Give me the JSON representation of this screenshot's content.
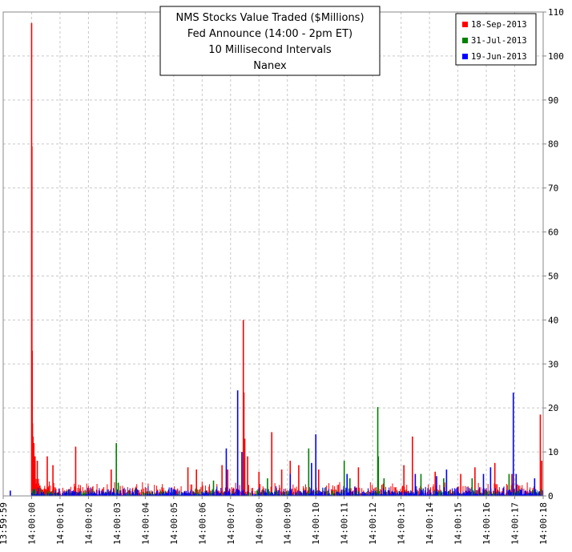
{
  "chart_data": {
    "type": "bar",
    "title_lines": [
      "NMS Stocks Value Traded ($Millions)",
      "Fed Announce (14:00 - 2pm ET)",
      "10 Millisecond Intervals",
      "Nanex"
    ],
    "ylim": [
      0,
      110
    ],
    "y_ticks": [
      "0",
      "10",
      "20",
      "30",
      "40",
      "50",
      "60",
      "70",
      "80",
      "90",
      "100",
      "110"
    ],
    "x_ticks": [
      "13:59:59",
      "14:00:00",
      "14:00:01",
      "14:00:02",
      "14:00:03",
      "14:00:04",
      "14:00:05",
      "14:00:06",
      "14:00:07",
      "14:00:08",
      "14:00:09",
      "14:00:10",
      "14:00:11",
      "14:00:12",
      "14:00:13",
      "14:00:14",
      "14:00:15",
      "14:00:16",
      "14:00:17",
      "14:00:18"
    ],
    "xlim_seconds": [
      -1,
      18
    ],
    "grid": true,
    "legend_position": "top-right",
    "series": [
      {
        "name": "18-Sep-2013",
        "color": "#ff0000",
        "peaks": [
          {
            "t": 0.0,
            "v": 107.5
          },
          {
            "t": 0.01,
            "v": 79.5
          },
          {
            "t": 0.02,
            "v": 33
          },
          {
            "t": 0.03,
            "v": 16.5
          },
          {
            "t": 0.05,
            "v": 13.5
          },
          {
            "t": 0.08,
            "v": 12
          },
          {
            "t": 0.12,
            "v": 9
          },
          {
            "t": 0.2,
            "v": 8
          },
          {
            "t": 0.55,
            "v": 9
          },
          {
            "t": 0.75,
            "v": 7
          },
          {
            "t": 1.55,
            "v": 11.2
          },
          {
            "t": 2.8,
            "v": 6
          },
          {
            "t": 5.5,
            "v": 6.5
          },
          {
            "t": 5.8,
            "v": 6
          },
          {
            "t": 6.7,
            "v": 7
          },
          {
            "t": 6.9,
            "v": 6
          },
          {
            "t": 7.45,
            "v": 40
          },
          {
            "t": 7.47,
            "v": 23.5
          },
          {
            "t": 7.5,
            "v": 13
          },
          {
            "t": 7.6,
            "v": 9
          },
          {
            "t": 8.0,
            "v": 5.5
          },
          {
            "t": 8.45,
            "v": 14.5
          },
          {
            "t": 8.8,
            "v": 6
          },
          {
            "t": 9.1,
            "v": 8
          },
          {
            "t": 9.4,
            "v": 7
          },
          {
            "t": 10.1,
            "v": 6
          },
          {
            "t": 11.5,
            "v": 6.5
          },
          {
            "t": 12.2,
            "v": 6
          },
          {
            "t": 13.4,
            "v": 13.5
          },
          {
            "t": 13.1,
            "v": 7
          },
          {
            "t": 14.2,
            "v": 5.5
          },
          {
            "t": 15.1,
            "v": 5
          },
          {
            "t": 15.6,
            "v": 6.5
          },
          {
            "t": 16.3,
            "v": 7.5
          },
          {
            "t": 16.9,
            "v": 5
          },
          {
            "t": 17.9,
            "v": 18.5
          },
          {
            "t": 17.95,
            "v": 8
          }
        ],
        "base": 2.2,
        "start": 0.0,
        "end": 18.0
      },
      {
        "name": "31-Jul-2013",
        "color": "#008000",
        "peaks": [
          {
            "t": 2.98,
            "v": 12
          },
          {
            "t": 3.05,
            "v": 3
          },
          {
            "t": 6.4,
            "v": 3.5
          },
          {
            "t": 8.3,
            "v": 4
          },
          {
            "t": 9.75,
            "v": 10.8
          },
          {
            "t": 11.0,
            "v": 8
          },
          {
            "t": 11.2,
            "v": 4
          },
          {
            "t": 12.18,
            "v": 20.2
          },
          {
            "t": 12.2,
            "v": 9
          },
          {
            "t": 12.4,
            "v": 4
          },
          {
            "t": 13.7,
            "v": 5
          },
          {
            "t": 14.5,
            "v": 4
          },
          {
            "t": 15.5,
            "v": 4
          },
          {
            "t": 16.8,
            "v": 5
          }
        ],
        "base": 1.2,
        "start": 0.0,
        "end": 18.0
      },
      {
        "name": "19-Jun-2013",
        "color": "#0000ff",
        "peaks": [
          {
            "t": -0.75,
            "v": 1.2
          },
          {
            "t": 6.85,
            "v": 10.8
          },
          {
            "t": 7.25,
            "v": 24
          },
          {
            "t": 7.4,
            "v": 10
          },
          {
            "t": 9.1,
            "v": 5
          },
          {
            "t": 9.85,
            "v": 7.5
          },
          {
            "t": 10.0,
            "v": 14
          },
          {
            "t": 11.1,
            "v": 5
          },
          {
            "t": 13.5,
            "v": 5
          },
          {
            "t": 14.25,
            "v": 4.5
          },
          {
            "t": 14.6,
            "v": 6
          },
          {
            "t": 15.9,
            "v": 5
          },
          {
            "t": 16.15,
            "v": 6.5
          },
          {
            "t": 16.95,
            "v": 23.5
          },
          {
            "t": 17.05,
            "v": 5
          },
          {
            "t": 17.7,
            "v": 4
          }
        ],
        "base": 1.5,
        "start": 0.0,
        "end": 18.0
      }
    ]
  }
}
